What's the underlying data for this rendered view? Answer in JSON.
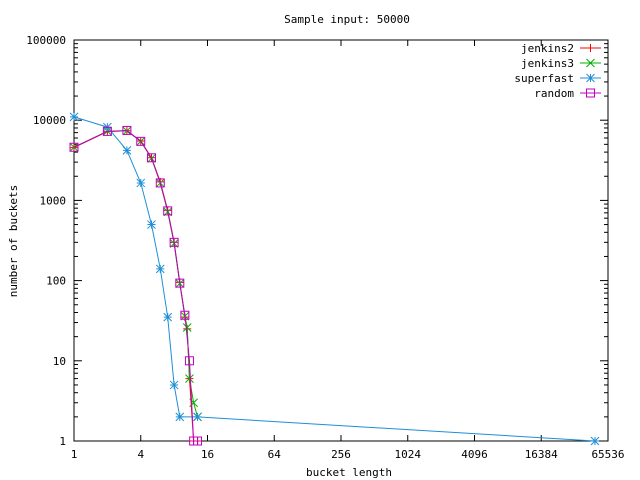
{
  "chart_data": {
    "type": "line",
    "title": "Sample input: 50000",
    "xlabel": "bucket length",
    "ylabel": "number of buckets",
    "x_scale": "log2",
    "y_scale": "log10",
    "xlim": [
      1,
      65536
    ],
    "ylim": [
      1,
      100000
    ],
    "x_ticks": [
      1,
      4,
      16,
      64,
      256,
      1024,
      4096,
      16384,
      65536
    ],
    "x_tick_labels": [
      "1",
      "4",
      "16",
      "64",
      "256",
      "1024",
      "4096",
      "16384",
      "65536"
    ],
    "y_ticks": [
      1,
      10,
      100,
      1000,
      10000,
      100000
    ],
    "y_tick_labels": [
      "1",
      "10",
      "100",
      "1000",
      "10000",
      "100000"
    ],
    "grid": false,
    "legend_position": "top-right",
    "series": [
      {
        "name": "jenkins2",
        "color": "#ff0000",
        "marker": "plus",
        "points": [
          [
            1,
            4550
          ],
          [
            2,
            7200
          ],
          [
            3,
            7400
          ],
          [
            4,
            5500
          ],
          [
            5,
            3400
          ],
          [
            6,
            1700
          ],
          [
            7,
            750
          ],
          [
            8,
            300
          ],
          [
            9,
            95
          ],
          [
            10,
            35
          ],
          [
            10.5,
            25
          ],
          [
            11,
            6
          ],
          [
            12,
            1
          ],
          [
            13,
            1
          ]
        ]
      },
      {
        "name": "jenkins3",
        "color": "#00b000",
        "marker": "cross",
        "points": [
          [
            1,
            4600
          ],
          [
            2,
            7300
          ],
          [
            3,
            7350
          ],
          [
            4,
            5450
          ],
          [
            5,
            3350
          ],
          [
            6,
            1650
          ],
          [
            7,
            720
          ],
          [
            8,
            290
          ],
          [
            9,
            92
          ],
          [
            10,
            36
          ],
          [
            10.5,
            26
          ],
          [
            11,
            6
          ],
          [
            12,
            3
          ],
          [
            13,
            2
          ]
        ]
      },
      {
        "name": "superfast",
        "color": "#1f8fd6",
        "marker": "star",
        "points": [
          [
            1,
            11000
          ],
          [
            2,
            8200
          ],
          [
            3,
            4200
          ],
          [
            4,
            1650
          ],
          [
            5,
            500
          ],
          [
            6,
            140
          ],
          [
            7,
            35
          ],
          [
            8,
            5
          ],
          [
            9,
            2
          ],
          [
            13,
            2
          ],
          [
            50000,
            1
          ]
        ]
      },
      {
        "name": "random",
        "color": "#c000c0",
        "marker": "square",
        "points": [
          [
            1,
            4600
          ],
          [
            2,
            7250
          ],
          [
            3,
            7450
          ],
          [
            4,
            5450
          ],
          [
            5,
            3400
          ],
          [
            6,
            1650
          ],
          [
            7,
            740
          ],
          [
            8,
            300
          ],
          [
            9,
            93
          ],
          [
            10,
            37
          ],
          [
            11,
            10
          ],
          [
            12,
            1
          ],
          [
            13,
            1
          ]
        ]
      }
    ]
  }
}
